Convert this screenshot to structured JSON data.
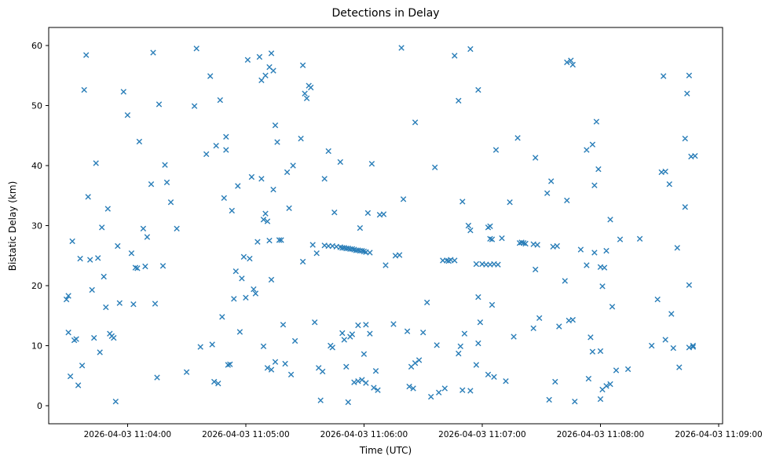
{
  "chart_data": {
    "type": "scatter",
    "title": "Detections in Delay",
    "xlabel": "Time (UTC)",
    "ylabel": "Bistatic Delay (km)",
    "marker": "x",
    "marker_color": "#1f77b4",
    "x_unit": "seconds after 2026-04-03 11:04:00 UTC",
    "xlim": [
      -40,
      302
    ],
    "ylim": [
      -3,
      63
    ],
    "grid": false,
    "legend": "none",
    "x_ticks": [
      {
        "value": 0,
        "label": "2026-04-03 11:04:00"
      },
      {
        "value": 60,
        "label": "2026-04-03 11:05:00"
      },
      {
        "value": 120,
        "label": "2026-04-03 11:06:00"
      },
      {
        "value": 180,
        "label": "2026-04-03 11:07:00"
      },
      {
        "value": 240,
        "label": "2026-04-03 11:08:00"
      },
      {
        "value": 300,
        "label": "2026-04-03 11:09:00"
      }
    ],
    "y_ticks": [
      0,
      10,
      20,
      30,
      40,
      50,
      60
    ],
    "points": [
      [
        -31,
        17.7
      ],
      [
        -30,
        18.3
      ],
      [
        -30,
        12.2
      ],
      [
        -29,
        4.9
      ],
      [
        -28,
        27.4
      ],
      [
        -27,
        10.9
      ],
      [
        -26,
        11.1
      ],
      [
        -25,
        3.4
      ],
      [
        -24,
        24.5
      ],
      [
        -23,
        6.7
      ],
      [
        -22,
        52.6
      ],
      [
        -21,
        58.4
      ],
      [
        -20,
        34.8
      ],
      [
        -19,
        24.3
      ],
      [
        -18,
        19.3
      ],
      [
        -17,
        11.3
      ],
      [
        -16,
        40.4
      ],
      [
        -15,
        24.6
      ],
      [
        -14,
        8.9
      ],
      [
        -13,
        29.7
      ],
      [
        -12,
        21.5
      ],
      [
        -11,
        16.4
      ],
      [
        -10,
        32.8
      ],
      [
        -9,
        12.0
      ],
      [
        -8,
        11.6
      ],
      [
        -7,
        11.3
      ],
      [
        -6,
        0.7
      ],
      [
        -5,
        26.6
      ],
      [
        -4,
        17.1
      ],
      [
        -2,
        52.3
      ],
      [
        0,
        48.4
      ],
      [
        2,
        25.4
      ],
      [
        3,
        16.9
      ],
      [
        4,
        23.0
      ],
      [
        5,
        22.9
      ],
      [
        6,
        44.0
      ],
      [
        8,
        29.5
      ],
      [
        9,
        23.2
      ],
      [
        10,
        28.1
      ],
      [
        12,
        36.9
      ],
      [
        13,
        58.8
      ],
      [
        14,
        17.0
      ],
      [
        15,
        4.7
      ],
      [
        16,
        50.2
      ],
      [
        18,
        23.3
      ],
      [
        19,
        40.1
      ],
      [
        20,
        37.2
      ],
      [
        22,
        33.9
      ],
      [
        25,
        29.5
      ],
      [
        30,
        5.6
      ],
      [
        34,
        49.9
      ],
      [
        35,
        59.5
      ],
      [
        37,
        9.8
      ],
      [
        40,
        41.9
      ],
      [
        42,
        54.9
      ],
      [
        43,
        10.2
      ],
      [
        44,
        4.0
      ],
      [
        45,
        43.3
      ],
      [
        46,
        3.7
      ],
      [
        47,
        50.9
      ],
      [
        48,
        14.8
      ],
      [
        49,
        34.6
      ],
      [
        50,
        44.8
      ],
      [
        50,
        42.6
      ],
      [
        51,
        6.8
      ],
      [
        52,
        6.9
      ],
      [
        53,
        32.5
      ],
      [
        54,
        17.8
      ],
      [
        55,
        22.4
      ],
      [
        56,
        36.6
      ],
      [
        57,
        12.3
      ],
      [
        58,
        21.2
      ],
      [
        59,
        24.8
      ],
      [
        60,
        18.0
      ],
      [
        61,
        57.6
      ],
      [
        62,
        24.5
      ],
      [
        63,
        38.1
      ],
      [
        64,
        19.4
      ],
      [
        65,
        18.7
      ],
      [
        66,
        27.3
      ],
      [
        67,
        58.1
      ],
      [
        68,
        54.2
      ],
      [
        68,
        37.8
      ],
      [
        69,
        31.0
      ],
      [
        69,
        9.9
      ],
      [
        70,
        55.0
      ],
      [
        70,
        32.0
      ],
      [
        71,
        30.7
      ],
      [
        71,
        6.3
      ],
      [
        72,
        56.4
      ],
      [
        72,
        27.5
      ],
      [
        73,
        21.0
      ],
      [
        73,
        6.0
      ],
      [
        73,
        58.7
      ],
      [
        74,
        55.8
      ],
      [
        74,
        36.0
      ],
      [
        75,
        7.3
      ],
      [
        75,
        46.7
      ],
      [
        76,
        43.9
      ],
      [
        77,
        27.6
      ],
      [
        78,
        27.6
      ],
      [
        79,
        13.5
      ],
      [
        80,
        7.0
      ],
      [
        81,
        38.9
      ],
      [
        82,
        32.9
      ],
      [
        83,
        5.2
      ],
      [
        84,
        40.0
      ],
      [
        85,
        10.8
      ],
      [
        88,
        44.5
      ],
      [
        89,
        24.0
      ],
      [
        89,
        56.7
      ],
      [
        90,
        52.0
      ],
      [
        91,
        51.2
      ],
      [
        92,
        53.3
      ],
      [
        93,
        53.0
      ],
      [
        94,
        26.8
      ],
      [
        95,
        13.9
      ],
      [
        96,
        25.4
      ],
      [
        97,
        6.3
      ],
      [
        98,
        0.9
      ],
      [
        99,
        5.7
      ],
      [
        100,
        37.8
      ],
      [
        102,
        42.4
      ],
      [
        103,
        10.0
      ],
      [
        104,
        9.7
      ],
      [
        105,
        32.2
      ],
      [
        108,
        40.6
      ],
      [
        109,
        12.1
      ],
      [
        110,
        11.0
      ],
      [
        111,
        6.5
      ],
      [
        112,
        0.6
      ],
      [
        113,
        11.5
      ],
      [
        114,
        11.9
      ],
      [
        100,
        26.7
      ],
      [
        102,
        26.6
      ],
      [
        104,
        26.6
      ],
      [
        106,
        26.5
      ],
      [
        108,
        26.4
      ],
      [
        109,
        26.3
      ],
      [
        110,
        26.3
      ],
      [
        111,
        26.2
      ],
      [
        112,
        26.2
      ],
      [
        113,
        26.1
      ],
      [
        114,
        26.1
      ],
      [
        115,
        26.0
      ],
      [
        116,
        25.9
      ],
      [
        117,
        25.9
      ],
      [
        118,
        25.8
      ],
      [
        119,
        25.8
      ],
      [
        120,
        25.7
      ],
      [
        121,
        25.6
      ],
      [
        123,
        25.5
      ],
      [
        115,
        3.9
      ],
      [
        117,
        4.1
      ],
      [
        119,
        4.3
      ],
      [
        121,
        3.8
      ],
      [
        118,
        29.6
      ],
      [
        120,
        8.6
      ],
      [
        123,
        12.0
      ],
      [
        125,
        3.0
      ],
      [
        127,
        2.6
      ],
      [
        122,
        32.1
      ],
      [
        117,
        13.4
      ],
      [
        121,
        13.5
      ],
      [
        126,
        5.8
      ],
      [
        128,
        31.8
      ],
      [
        130,
        31.9
      ],
      [
        131,
        23.4
      ],
      [
        135,
        13.6
      ],
      [
        124,
        40.3
      ],
      [
        136,
        25.0
      ],
      [
        138,
        25.1
      ],
      [
        139,
        59.6
      ],
      [
        140,
        34.4
      ],
      [
        142,
        12.4
      ],
      [
        143,
        3.2
      ],
      [
        144,
        6.5
      ],
      [
        145,
        2.9
      ],
      [
        146,
        47.2
      ],
      [
        146,
        7.1
      ],
      [
        148,
        7.6
      ],
      [
        150,
        12.2
      ],
      [
        152,
        17.2
      ],
      [
        154,
        1.5
      ],
      [
        156,
        39.7
      ],
      [
        157,
        10.1
      ],
      [
        158,
        2.2
      ],
      [
        160,
        24.2
      ],
      [
        161,
        2.9
      ],
      [
        162,
        24.2
      ],
      [
        163,
        24.1
      ],
      [
        164,
        24.3
      ],
      [
        166,
        24.2
      ],
      [
        166,
        58.3
      ],
      [
        168,
        50.8
      ],
      [
        168,
        8.7
      ],
      [
        169,
        9.9
      ],
      [
        170,
        34.0
      ],
      [
        170,
        2.6
      ],
      [
        171,
        12.0
      ],
      [
        173,
        30.0
      ],
      [
        174,
        29.2
      ],
      [
        174,
        59.4
      ],
      [
        174,
        2.5
      ],
      [
        177,
        6.8
      ],
      [
        177,
        23.6
      ],
      [
        178,
        18.1
      ],
      [
        178,
        52.6
      ],
      [
        178,
        10.4
      ],
      [
        179,
        13.9
      ],
      [
        180,
        23.6
      ],
      [
        182,
        23.5
      ],
      [
        183,
        29.7
      ],
      [
        183,
        5.2
      ],
      [
        184,
        29.9
      ],
      [
        184,
        27.8
      ],
      [
        184,
        23.5
      ],
      [
        185,
        27.7
      ],
      [
        185,
        16.8
      ],
      [
        186,
        4.8
      ],
      [
        186,
        23.6
      ],
      [
        187,
        42.6
      ],
      [
        188,
        23.5
      ],
      [
        190,
        27.9
      ],
      [
        192,
        4.1
      ],
      [
        194,
        33.9
      ],
      [
        196,
        11.5
      ],
      [
        198,
        44.6
      ],
      [
        199,
        27.1
      ],
      [
        200,
        27.2
      ],
      [
        201,
        27.1
      ],
      [
        202,
        27.0
      ],
      [
        206,
        26.9
      ],
      [
        206,
        12.9
      ],
      [
        207,
        22.7
      ],
      [
        207,
        41.3
      ],
      [
        208,
        26.8
      ],
      [
        209,
        14.6
      ],
      [
        213,
        35.4
      ],
      [
        214,
        1.0
      ],
      [
        215,
        37.4
      ],
      [
        216,
        26.5
      ],
      [
        217,
        4.0
      ],
      [
        218,
        26.6
      ],
      [
        219,
        13.2
      ],
      [
        222,
        20.8
      ],
      [
        223,
        34.2
      ],
      [
        223,
        57.2
      ],
      [
        224,
        14.2
      ],
      [
        225,
        57.5
      ],
      [
        226,
        56.8
      ],
      [
        226,
        14.3
      ],
      [
        227,
        0.7
      ],
      [
        230,
        26.0
      ],
      [
        233,
        23.4
      ],
      [
        233,
        42.6
      ],
      [
        234,
        4.5
      ],
      [
        235,
        11.4
      ],
      [
        236,
        43.5
      ],
      [
        236,
        9.0
      ],
      [
        237,
        36.7
      ],
      [
        237,
        25.5
      ],
      [
        238,
        47.3
      ],
      [
        239,
        39.4
      ],
      [
        240,
        1.1
      ],
      [
        240,
        9.1
      ],
      [
        240,
        23.1
      ],
      [
        241,
        2.7
      ],
      [
        241,
        19.9
      ],
      [
        242,
        23.0
      ],
      [
        243,
        25.8
      ],
      [
        243,
        3.3
      ],
      [
        245,
        3.6
      ],
      [
        245,
        31.0
      ],
      [
        246,
        16.5
      ],
      [
        248,
        5.9
      ],
      [
        250,
        27.7
      ],
      [
        254,
        6.1
      ],
      [
        260,
        27.8
      ],
      [
        266,
        10.0
      ],
      [
        269,
        17.7
      ],
      [
        271,
        38.9
      ],
      [
        272,
        54.9
      ],
      [
        273,
        39.0
      ],
      [
        273,
        11.0
      ],
      [
        275,
        36.9
      ],
      [
        276,
        15.3
      ],
      [
        277,
        9.6
      ],
      [
        279,
        26.3
      ],
      [
        280,
        6.4
      ],
      [
        283,
        44.5
      ],
      [
        283,
        33.1
      ],
      [
        284,
        52.0
      ],
      [
        285,
        55.0
      ],
      [
        285,
        20.1
      ],
      [
        285,
        9.7
      ],
      [
        286,
        41.5
      ],
      [
        287,
        10.0
      ],
      [
        288,
        41.6
      ],
      [
        287,
        9.8
      ]
    ]
  }
}
